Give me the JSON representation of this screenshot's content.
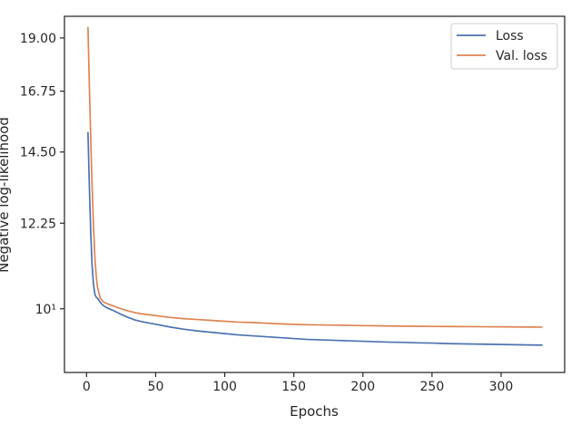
{
  "chart_data": {
    "type": "line",
    "title": "",
    "xlabel": "Epochs",
    "ylabel": "Negative log-likelihood",
    "yscale": "log",
    "xlim": [
      -16,
      346
    ],
    "ylim": [
      8.6,
      20.0
    ],
    "x_ticks": [
      0,
      50,
      100,
      150,
      200,
      250,
      300
    ],
    "x_tick_labels": [
      "0",
      "50",
      "100",
      "150",
      "200",
      "250",
      "300"
    ],
    "y_ticks": [
      10,
      12.25,
      14.5,
      16.75,
      19.0
    ],
    "y_tick_labels": [
      "10¹",
      "12.25",
      "14.50",
      "16.75",
      "19.00"
    ],
    "legend": "top-right",
    "grid": false,
    "series": [
      {
        "name": "Loss",
        "color": "#4c72b0",
        "x": [
          1,
          2,
          3,
          4,
          5,
          6,
          7,
          8,
          10,
          12,
          15,
          20,
          25,
          30,
          35,
          40,
          50,
          60,
          70,
          80,
          90,
          100,
          110,
          120,
          130,
          140,
          150,
          160,
          170,
          180,
          190,
          200,
          210,
          220,
          230,
          240,
          250,
          260,
          270,
          280,
          290,
          300,
          310,
          320,
          330
        ],
        "y": [
          15.2,
          13.4,
          12.0,
          11.1,
          10.6,
          10.35,
          10.28,
          10.25,
          10.15,
          10.08,
          10.02,
          9.95,
          9.87,
          9.8,
          9.74,
          9.7,
          9.64,
          9.58,
          9.53,
          9.49,
          9.46,
          9.43,
          9.4,
          9.38,
          9.36,
          9.34,
          9.32,
          9.3,
          9.29,
          9.28,
          9.27,
          9.26,
          9.25,
          9.24,
          9.235,
          9.225,
          9.22,
          9.21,
          9.205,
          9.2,
          9.195,
          9.19,
          9.185,
          9.18,
          9.175
        ]
      },
      {
        "name": "Val. loss",
        "color": "#dd8452",
        "x": [
          1,
          2,
          3,
          4,
          5,
          6,
          7,
          8,
          10,
          12,
          15,
          20,
          25,
          30,
          35,
          40,
          50,
          60,
          70,
          80,
          90,
          100,
          110,
          120,
          130,
          140,
          150,
          160,
          170,
          180,
          190,
          200,
          210,
          220,
          230,
          240,
          250,
          260,
          270,
          280,
          290,
          300,
          310,
          320,
          330
        ],
        "y": [
          19.5,
          17.0,
          15.0,
          13.4,
          12.2,
          11.3,
          10.8,
          10.5,
          10.25,
          10.17,
          10.12,
          10.06,
          10.0,
          9.95,
          9.91,
          9.88,
          9.84,
          9.8,
          9.77,
          9.75,
          9.73,
          9.71,
          9.69,
          9.68,
          9.665,
          9.65,
          9.64,
          9.63,
          9.625,
          9.62,
          9.615,
          9.61,
          9.605,
          9.6,
          9.598,
          9.595,
          9.592,
          9.59,
          9.588,
          9.586,
          9.584,
          9.582,
          9.58,
          9.578,
          9.576
        ]
      }
    ]
  }
}
